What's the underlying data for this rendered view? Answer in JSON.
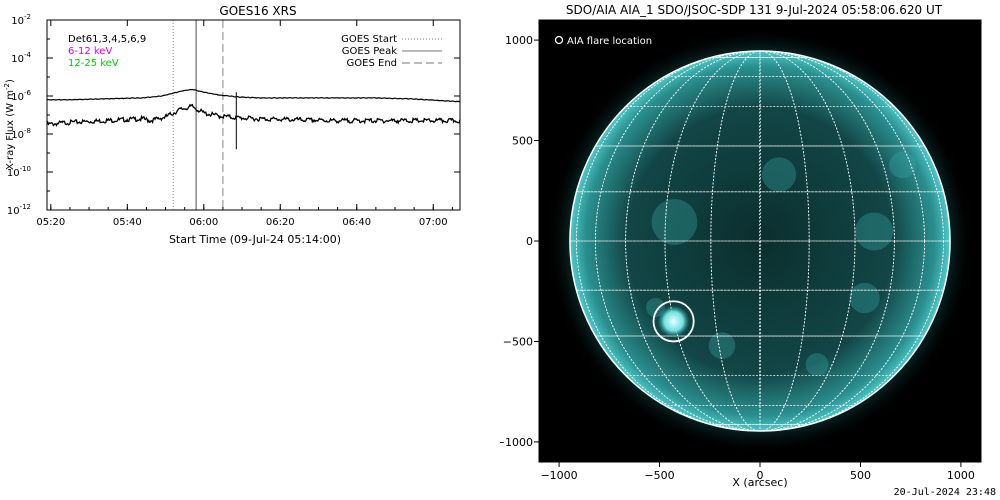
{
  "chart_data": [
    {
      "type": "line",
      "title": "GOES16 XRS",
      "xlabel": "Start Time (09-Jul-24 05:14:00)",
      "ylabel": "X-ray Flux (W m",
      "ylabel_sup": "-2",
      "ylabel_close": ")",
      "yscale": "log",
      "xlim_minutes": [
        5.0,
        113.0
      ],
      "x_start": "05:14:00",
      "ylim": [
        1e-12,
        0.01
      ],
      "x_ticks": [
        {
          "t": 6,
          "label": "05:20"
        },
        {
          "t": 26,
          "label": "05:40"
        },
        {
          "t": 46,
          "label": "06:00"
        },
        {
          "t": 66,
          "label": "06:20"
        },
        {
          "t": 86,
          "label": "06:40"
        },
        {
          "t": 106,
          "label": "07:00"
        }
      ],
      "y_ticks": [
        {
          "exp": -2,
          "label": "10",
          "sup": "-2"
        },
        {
          "exp": -4,
          "label": "10",
          "sup": "-4"
        },
        {
          "exp": -6,
          "label": "10",
          "sup": "-6"
        },
        {
          "exp": -8,
          "label": "10",
          "sup": "-8"
        },
        {
          "exp": -10,
          "label": "10",
          "sup": "-10"
        },
        {
          "exp": -12,
          "label": "10",
          "sup": "-12"
        }
      ],
      "detector_label": "Det61,3,4,5,6,9",
      "series": [
        {
          "name": "6-12 keV",
          "color": "#e000e0",
          "x": [
            5,
            10,
            20,
            30,
            35,
            40,
            43,
            46,
            50,
            55,
            60,
            70,
            80,
            90,
            100,
            113
          ],
          "y_log10": [
            -6.2,
            -6.2,
            -6.15,
            -6.1,
            -6.0,
            -5.75,
            -5.65,
            -5.8,
            -5.95,
            -6.05,
            -6.1,
            -6.1,
            -6.1,
            -6.1,
            -6.15,
            -6.3
          ]
        },
        {
          "name": "12-25 keV",
          "color": "#00cc00",
          "x": [
            5,
            10,
            20,
            30,
            32,
            36,
            40,
            43,
            46,
            50,
            55,
            60,
            70,
            80,
            90,
            100,
            113
          ],
          "y_log10": [
            -7.5,
            -7.4,
            -7.3,
            -7.2,
            -7.3,
            -7.1,
            -6.7,
            -6.55,
            -6.9,
            -7.05,
            -7.15,
            -7.2,
            -7.25,
            -7.3,
            -7.3,
            -7.3,
            -7.3
          ]
        }
      ],
      "markers": [
        {
          "name": "GOES Start",
          "t": 38,
          "style": "dotted"
        },
        {
          "name": "GOES Peak",
          "t": 44,
          "style": "solid"
        },
        {
          "name": "GOES End",
          "t": 51,
          "style": "dashed"
        }
      ],
      "vertical_line": {
        "t": 54.5,
        "y_log10_top": -5.8,
        "y_log10_bottom": -8.8
      },
      "legend_placement": "top-right"
    },
    {
      "type": "image",
      "title": "SDO/AIA AIA_1 SDO/JSOC-SDP 131  9-Jul-2024 05:58:06.620 UT",
      "xlabel": "X (arcsec)",
      "xlim": [
        -1100,
        1100
      ],
      "ylim": [
        -1100,
        1100
      ],
      "x_ticks": [
        -1000,
        -500,
        0,
        500,
        1000
      ],
      "y_ticks": [
        -1000,
        -500,
        0,
        500,
        1000
      ],
      "disk_radius_arcsec": 946,
      "flare_location": {
        "x": -430,
        "y": -400,
        "radius": 100
      },
      "legend_label": "AIA flare location",
      "colormap": "teal"
    }
  ],
  "footer_timestamp": "20-Jul-2024 23:48"
}
